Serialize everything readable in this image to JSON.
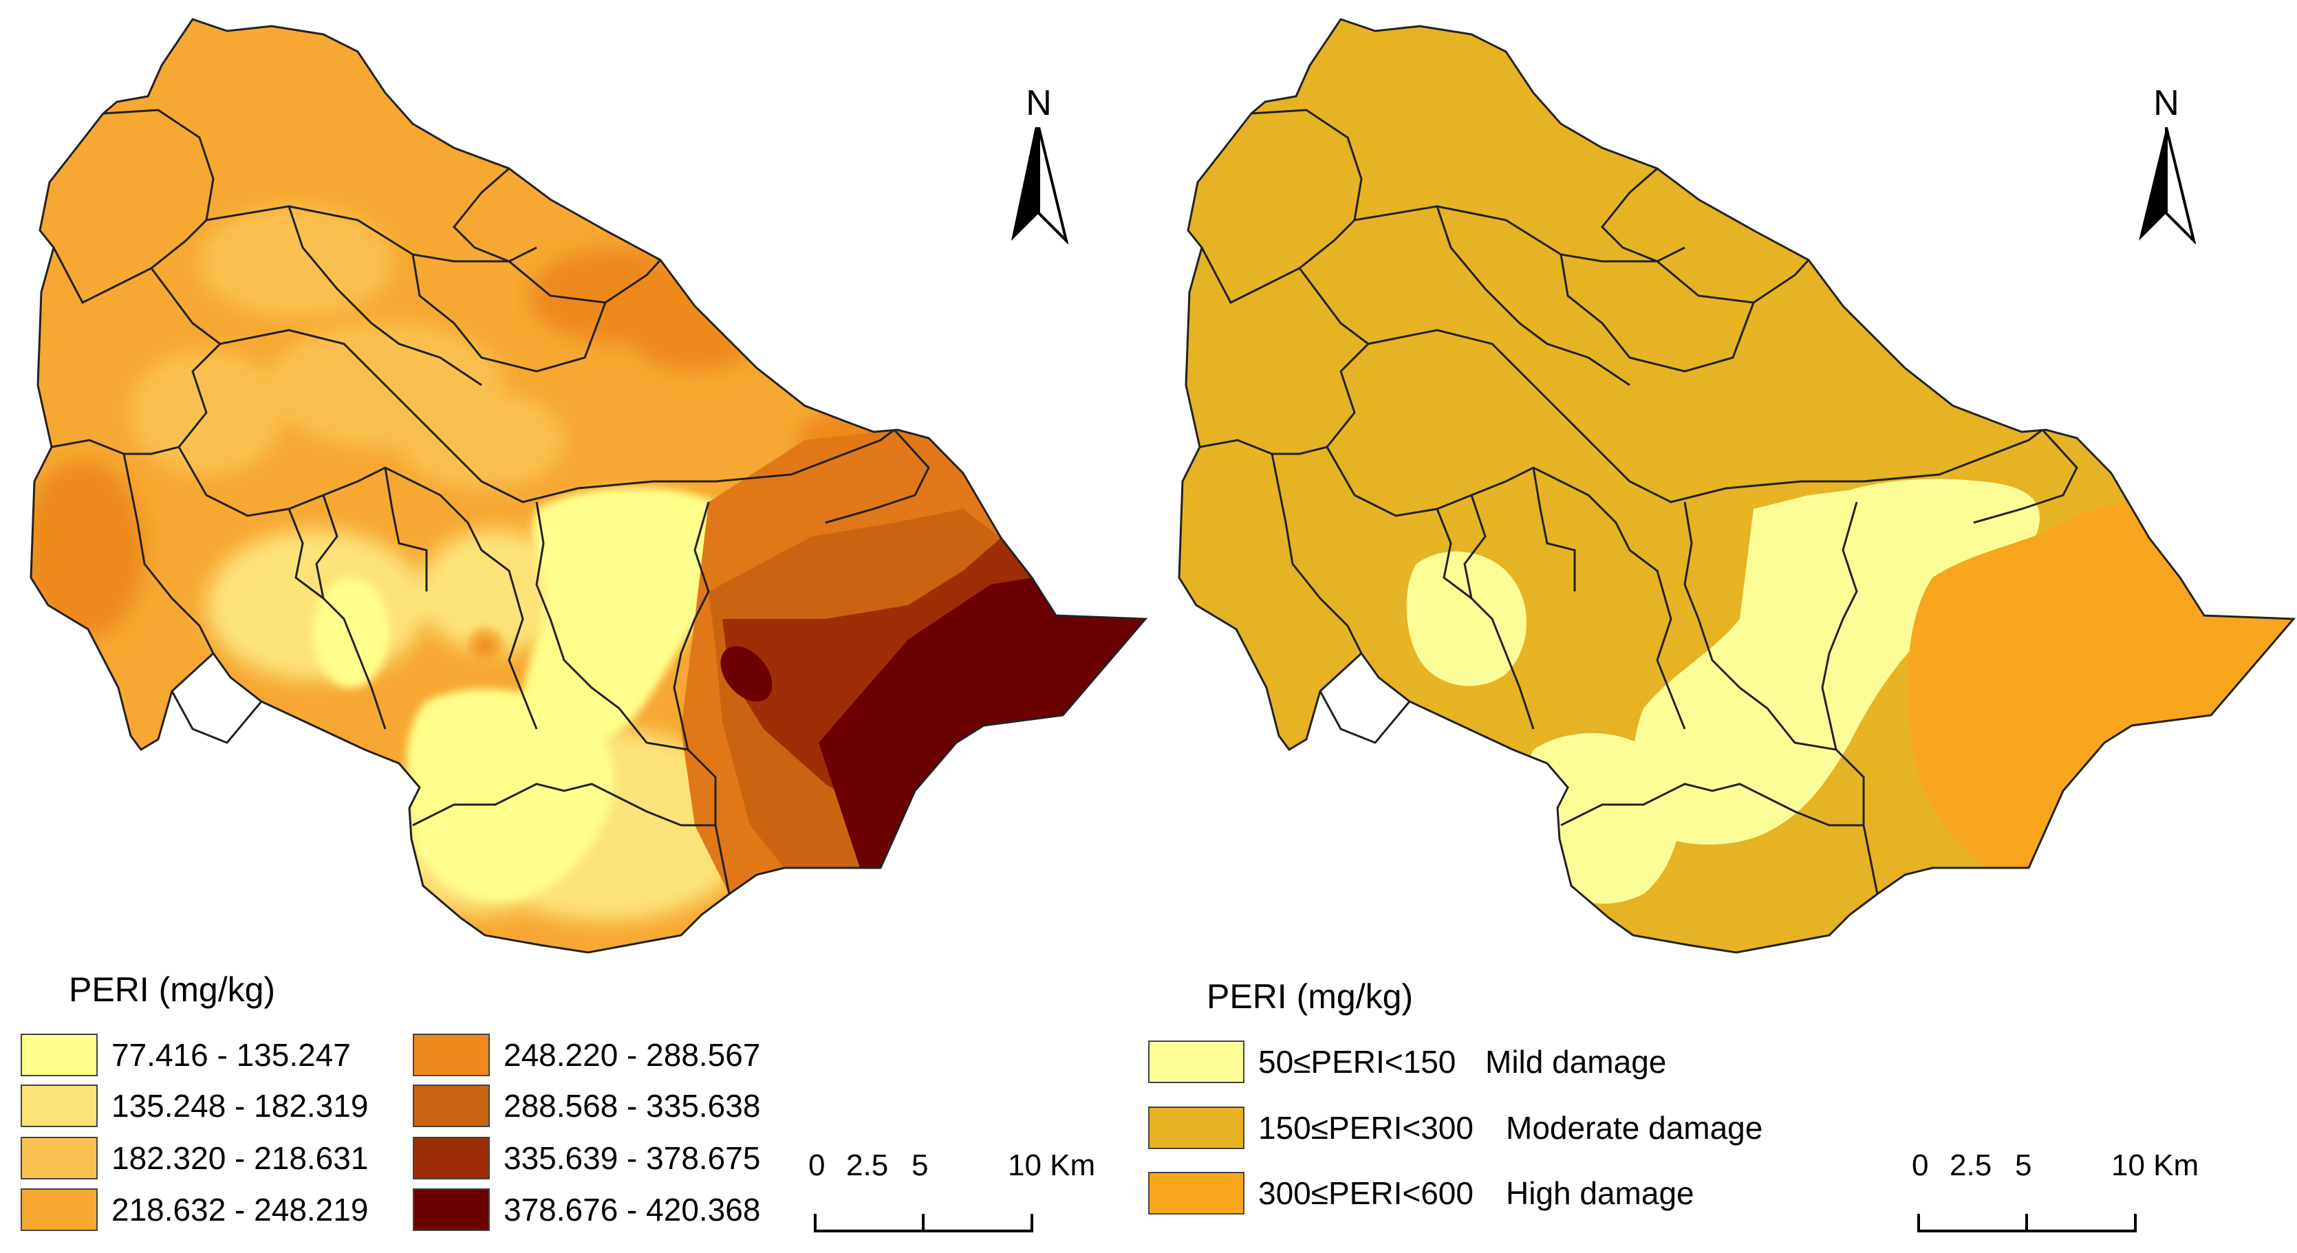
{
  "maps": [
    {
      "id": "left",
      "north_label": "N",
      "legend": {
        "title": "PERI (mg/kg)",
        "classes": [
          {
            "label": "77.416 - 135.247",
            "color": "#ffff8c"
          },
          {
            "label": "135.248 - 182.319",
            "color": "#fde27a"
          },
          {
            "label": "182.320 - 218.631",
            "color": "#fac04f"
          },
          {
            "label": "218.632 - 248.219",
            "color": "#f6a832"
          },
          {
            "label": "248.220 - 288.567",
            "color": "#ee8a1e"
          },
          {
            "label": "288.568 - 335.638",
            "color": "#c96512"
          },
          {
            "label": "335.639 - 378.675",
            "color": "#9e2e05"
          },
          {
            "label": "378.676 - 420.368",
            "color": "#6b0000"
          }
        ]
      },
      "scale": {
        "ticks": [
          "0",
          "2.5",
          "5"
        ],
        "end": "10 Km"
      }
    },
    {
      "id": "right",
      "north_label": "N",
      "legend": {
        "title": "PERI (mg/kg)",
        "classes": [
          {
            "label": "50≤PERI<150",
            "desc": "Mild damage",
            "color": "#fdfd98"
          },
          {
            "label": "150≤PERI<300",
            "desc": "Moderate damage",
            "color": "#e6b325"
          },
          {
            "label": "300≤PERI<600",
            "desc": "High damage",
            "color": "#f8a61d"
          }
        ]
      },
      "scale": {
        "ticks": [
          "0",
          "2.5",
          "5"
        ],
        "end": "10 Km"
      }
    }
  ]
}
